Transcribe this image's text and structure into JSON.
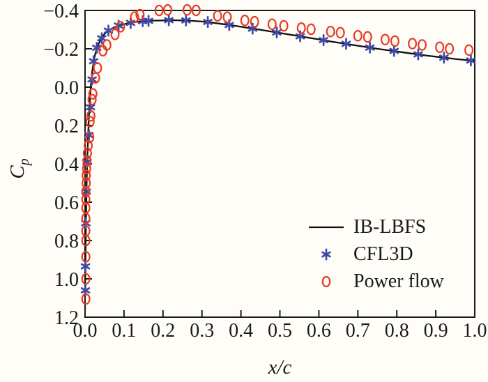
{
  "colors": {
    "axis": "#1a1a1a",
    "background": "#fffdf7"
  },
  "chart_data": {
    "type": "line+scatter",
    "title": "",
    "xlabel": "x/c",
    "ylabel": "Cp",
    "ylabel_base": "C",
    "ylabel_sub": "p",
    "xlim": [
      0,
      1
    ],
    "ylim": [
      -0.4,
      1.2
    ],
    "y_axis_inverted": true,
    "grid": false,
    "legend_position": "inside-right-center",
    "x_ticks": {
      "values": [
        0.0,
        0.1,
        0.2,
        0.3,
        0.4,
        0.5,
        0.6,
        0.7,
        0.8,
        0.9,
        1.0
      ],
      "labels": [
        "0.0",
        "0.1",
        "0.2",
        "0.3",
        "0.4",
        "0.5",
        "0.6",
        "0.7",
        "0.8",
        "0.9",
        "1.0"
      ]
    },
    "y_ticks": {
      "values": [
        -0.4,
        -0.2,
        0.0,
        0.2,
        0.4,
        0.6,
        0.8,
        1.0,
        1.2
      ],
      "labels": [
        "−0.4",
        "−0.2",
        "0.0",
        "0.2",
        "0.4",
        "0.6",
        "0.8",
        "1.0",
        "1.2"
      ]
    },
    "legend": [
      {
        "label": "IB-LBFS",
        "marker": "line"
      },
      {
        "label": "CFL3D",
        "marker": "asterisk"
      },
      {
        "label": "Power flow",
        "marker": "circle"
      }
    ],
    "series": [
      {
        "name": "IB-LBFS",
        "type": "line",
        "color": "#111111",
        "points": [
          [
            0.0,
            1.09
          ],
          [
            0.0005,
            1.0
          ],
          [
            0.001,
            0.92
          ],
          [
            0.0015,
            0.84
          ],
          [
            0.002,
            0.76
          ],
          [
            0.003,
            0.63
          ],
          [
            0.004,
            0.52
          ],
          [
            0.005,
            0.43
          ],
          [
            0.006,
            0.355
          ],
          [
            0.008,
            0.24
          ],
          [
            0.01,
            0.15
          ],
          [
            0.012,
            0.075
          ],
          [
            0.015,
            -0.01
          ],
          [
            0.018,
            -0.075
          ],
          [
            0.022,
            -0.135
          ],
          [
            0.027,
            -0.18
          ],
          [
            0.033,
            -0.218
          ],
          [
            0.04,
            -0.248
          ],
          [
            0.05,
            -0.277
          ],
          [
            0.062,
            -0.298
          ],
          [
            0.075,
            -0.312
          ],
          [
            0.09,
            -0.323
          ],
          [
            0.11,
            -0.333
          ],
          [
            0.13,
            -0.34
          ],
          [
            0.15,
            -0.344
          ],
          [
            0.175,
            -0.347
          ],
          [
            0.2,
            -0.348
          ],
          [
            0.225,
            -0.349
          ],
          [
            0.25,
            -0.348
          ],
          [
            0.275,
            -0.346
          ],
          [
            0.3,
            -0.342
          ],
          [
            0.325,
            -0.337
          ],
          [
            0.35,
            -0.33
          ],
          [
            0.375,
            -0.323
          ],
          [
            0.4,
            -0.315
          ],
          [
            0.425,
            -0.307
          ],
          [
            0.45,
            -0.299
          ],
          [
            0.475,
            -0.291
          ],
          [
            0.5,
            -0.283
          ],
          [
            0.525,
            -0.274
          ],
          [
            0.55,
            -0.266
          ],
          [
            0.575,
            -0.257
          ],
          [
            0.6,
            -0.249
          ],
          [
            0.625,
            -0.24
          ],
          [
            0.65,
            -0.232
          ],
          [
            0.675,
            -0.224
          ],
          [
            0.7,
            -0.216
          ],
          [
            0.725,
            -0.208
          ],
          [
            0.75,
            -0.2
          ],
          [
            0.775,
            -0.193
          ],
          [
            0.8,
            -0.186
          ],
          [
            0.825,
            -0.179
          ],
          [
            0.85,
            -0.172
          ],
          [
            0.875,
            -0.165
          ],
          [
            0.9,
            -0.159
          ],
          [
            0.925,
            -0.153
          ],
          [
            0.95,
            -0.147
          ],
          [
            0.975,
            -0.142
          ],
          [
            1.0,
            -0.137
          ]
        ]
      },
      {
        "name": "CFL3D",
        "type": "scatter",
        "marker": "asterisk",
        "color": "#3f4aa5",
        "points": [
          [
            0.001,
            1.06
          ],
          [
            0.001,
            0.935
          ],
          [
            0.002,
            0.71
          ],
          [
            0.003,
            0.545
          ],
          [
            0.005,
            0.39
          ],
          [
            0.01,
            0.25
          ],
          [
            0.014,
            0.105
          ],
          [
            0.018,
            -0.04
          ],
          [
            0.022,
            -0.135
          ],
          [
            0.03,
            -0.205
          ],
          [
            0.043,
            -0.255
          ],
          [
            0.06,
            -0.295
          ],
          [
            0.086,
            -0.321
          ],
          [
            0.117,
            -0.335
          ],
          [
            0.148,
            -0.344
          ],
          [
            0.163,
            -0.346
          ],
          [
            0.215,
            -0.349
          ],
          [
            0.259,
            -0.348
          ],
          [
            0.315,
            -0.34
          ],
          [
            0.37,
            -0.324
          ],
          [
            0.43,
            -0.305
          ],
          [
            0.492,
            -0.285
          ],
          [
            0.552,
            -0.265
          ],
          [
            0.612,
            -0.245
          ],
          [
            0.67,
            -0.226
          ],
          [
            0.731,
            -0.206
          ],
          [
            0.793,
            -0.189
          ],
          [
            0.855,
            -0.171
          ],
          [
            0.921,
            -0.154
          ],
          [
            0.99,
            -0.139
          ]
        ]
      },
      {
        "name": "Power flow",
        "type": "scatter",
        "marker": "circle",
        "color": "#e63b23",
        "points": [
          [
            0.002,
            1.105
          ],
          [
            0.002,
            1.0
          ],
          [
            0.002,
            0.885
          ],
          [
            0.002,
            0.8
          ],
          [
            0.002,
            0.75
          ],
          [
            0.002,
            0.685
          ],
          [
            0.002,
            0.63
          ],
          [
            0.002,
            0.585
          ],
          [
            0.002,
            0.545
          ],
          [
            0.003,
            0.5
          ],
          [
            0.003,
            0.46
          ],
          [
            0.004,
            0.425
          ],
          [
            0.005,
            0.385
          ],
          [
            0.006,
            0.345
          ],
          [
            0.008,
            0.305
          ],
          [
            0.012,
            0.262
          ],
          [
            0.013,
            0.18
          ],
          [
            0.015,
            0.15
          ],
          [
            0.018,
            0.065
          ],
          [
            0.02,
            0.035
          ],
          [
            0.027,
            -0.048
          ],
          [
            0.032,
            -0.1
          ],
          [
            0.046,
            -0.19
          ],
          [
            0.056,
            -0.22
          ],
          [
            0.077,
            -0.275
          ],
          [
            0.091,
            -0.315
          ],
          [
            0.127,
            -0.365
          ],
          [
            0.141,
            -0.378
          ],
          [
            0.19,
            -0.4
          ],
          [
            0.212,
            -0.403
          ],
          [
            0.262,
            -0.403
          ],
          [
            0.285,
            -0.4
          ],
          [
            0.34,
            -0.372
          ],
          [
            0.365,
            -0.365
          ],
          [
            0.41,
            -0.348
          ],
          [
            0.435,
            -0.341
          ],
          [
            0.48,
            -0.328
          ],
          [
            0.51,
            -0.32
          ],
          [
            0.555,
            -0.308
          ],
          [
            0.58,
            -0.302
          ],
          [
            0.63,
            -0.29
          ],
          [
            0.655,
            -0.284
          ],
          [
            0.7,
            -0.268
          ],
          [
            0.725,
            -0.262
          ],
          [
            0.77,
            -0.248
          ],
          [
            0.795,
            -0.24
          ],
          [
            0.84,
            -0.227
          ],
          [
            0.865,
            -0.22
          ],
          [
            0.91,
            -0.208
          ],
          [
            0.935,
            -0.2
          ],
          [
            0.985,
            -0.193
          ]
        ]
      }
    ]
  }
}
